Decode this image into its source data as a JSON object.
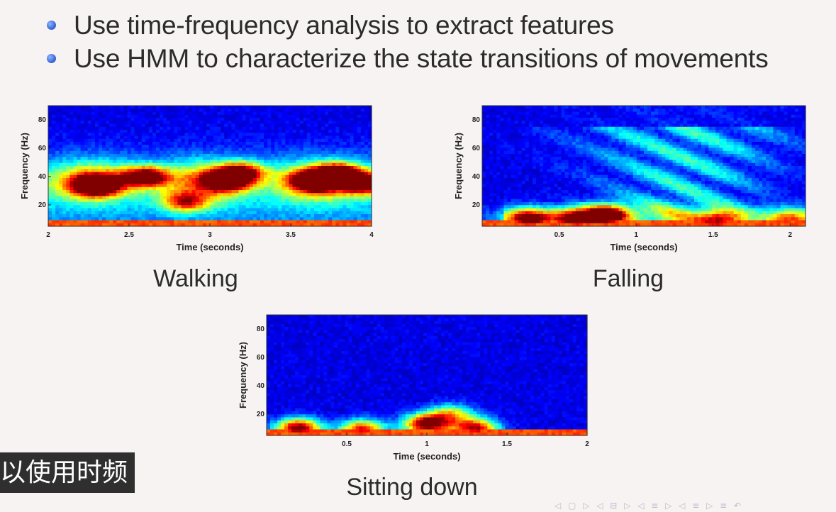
{
  "slide": {
    "bullets": [
      "Use time-frequency analysis to extract features",
      "Use HMM to characterize the state transitions of movements"
    ],
    "subtitle": "以使用时频",
    "nav_glyphs": "◁ ▢ ▷ ◁ ⊟ ▷ ◁ ≡ ▷ ◁ ≡ ▷ ≡ ↶"
  },
  "chart_data": [
    {
      "type": "heatmap",
      "title": "Walking",
      "xlabel": "Time (seconds)",
      "ylabel": "Frequency (Hz)",
      "xlim": [
        2,
        4
      ],
      "ylim": [
        5,
        90
      ],
      "xticks": [
        "2",
        "2.5",
        "3",
        "3.5",
        "4"
      ],
      "xtick_values": [
        2,
        2.5,
        3,
        3.5,
        4
      ],
      "yticks": [
        "20",
        "40",
        "60",
        "80"
      ],
      "ytick_values": [
        20,
        40,
        60,
        80
      ],
      "hotspots": [
        {
          "x": 2.3,
          "y": 34,
          "intensity": 1.0
        },
        {
          "x": 2.6,
          "y": 40,
          "intensity": 0.85
        },
        {
          "x": 3.1,
          "y": 37,
          "intensity": 0.8
        },
        {
          "x": 3.2,
          "y": 43,
          "intensity": 0.7
        },
        {
          "x": 3.65,
          "y": 37,
          "intensity": 0.95
        },
        {
          "x": 3.8,
          "y": 42,
          "intensity": 0.85
        },
        {
          "x": 3.95,
          "y": 35,
          "intensity": 0.8
        },
        {
          "x": 2.85,
          "y": 22,
          "intensity": 0.55
        }
      ],
      "band": {
        "y_center": 37,
        "width": 14,
        "intensity": 0.5
      },
      "floor_intensity": 0.2
    },
    {
      "type": "heatmap",
      "title": "Falling",
      "xlabel": "Time (seconds)",
      "ylabel": "Frequency (Hz)",
      "xlim": [
        0,
        2.1
      ],
      "ylim": [
        5,
        90
      ],
      "xticks": [
        "0.5",
        "1",
        "1.5",
        "2"
      ],
      "xtick_values": [
        0.5,
        1,
        1.5,
        2
      ],
      "yticks": [
        "20",
        "40",
        "60",
        "80"
      ],
      "ytick_values": [
        20,
        40,
        60,
        80
      ],
      "hotspots": [
        {
          "x": 0.3,
          "y": 10,
          "intensity": 0.8
        },
        {
          "x": 0.8,
          "y": 13,
          "intensity": 0.95
        },
        {
          "x": 0.6,
          "y": 10,
          "intensity": 0.7
        },
        {
          "x": 1.55,
          "y": 9,
          "intensity": 0.55
        },
        {
          "x": 2.0,
          "y": 9,
          "intensity": 0.5
        }
      ],
      "plume": {
        "x_center": 1.3,
        "y_top": 75,
        "intensity": 0.35
      },
      "floor_intensity": 0.0
    },
    {
      "type": "heatmap",
      "title": "Sitting down",
      "xlabel": "Time (seconds)",
      "ylabel": "Frequency (Hz)",
      "xlim": [
        0,
        2
      ],
      "ylim": [
        5,
        90
      ],
      "xticks": [
        "0.5",
        "1",
        "1.5",
        "2"
      ],
      "xtick_values": [
        0.5,
        1,
        1.5,
        2
      ],
      "yticks": [
        "20",
        "40",
        "60",
        "80"
      ],
      "ytick_values": [
        20,
        40,
        60,
        80
      ],
      "hotspots": [
        {
          "x": 0.2,
          "y": 10,
          "intensity": 0.95
        },
        {
          "x": 0.6,
          "y": 9,
          "intensity": 0.8
        },
        {
          "x": 1.0,
          "y": 13,
          "intensity": 1.0
        },
        {
          "x": 1.3,
          "y": 10,
          "intensity": 0.85
        },
        {
          "x": 1.15,
          "y": 20,
          "intensity": 0.5
        }
      ],
      "floor_intensity": 0.0
    }
  ]
}
